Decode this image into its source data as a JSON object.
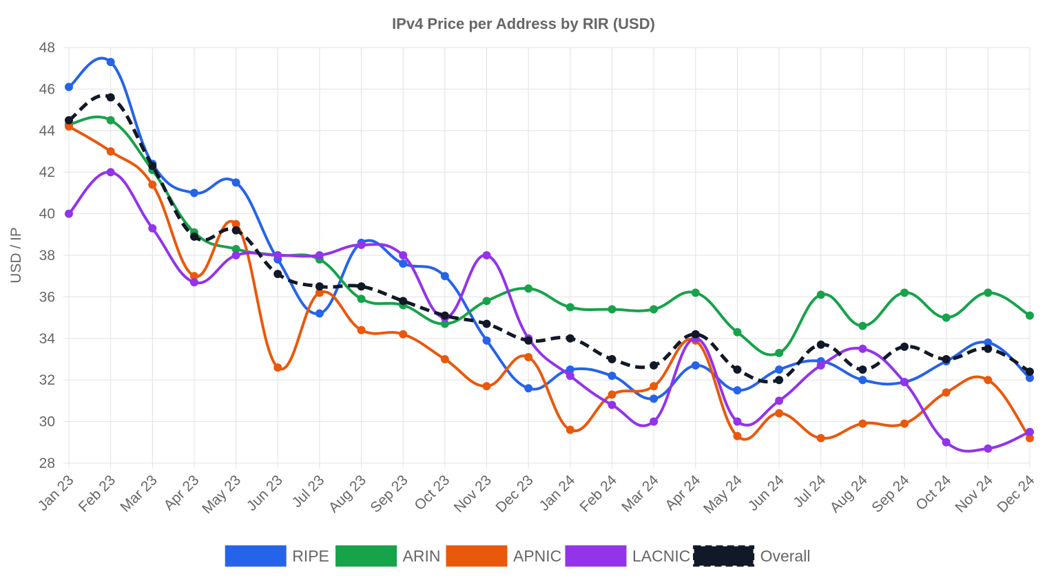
{
  "chart_data": {
    "type": "line",
    "title": "IPv4 Price per Address by RIR (USD)",
    "xlabel": "",
    "ylabel": "USD / IP",
    "ylim": [
      28,
      48
    ],
    "yticks": [
      28,
      30,
      32,
      34,
      36,
      38,
      40,
      42,
      44,
      46,
      48
    ],
    "grid": true,
    "legend_position": "bottom",
    "categories": [
      "Jan 23",
      "Feb 23",
      "Mar 23",
      "Apr 23",
      "May 23",
      "Jun 23",
      "Jul 23",
      "Aug 23",
      "Sep 23",
      "Oct 23",
      "Nov 23",
      "Dec 23",
      "Jan 24",
      "Feb 24",
      "Mar 24",
      "Apr 24",
      "May 24",
      "Jun 24",
      "Jul 24",
      "Aug 24",
      "Sep 24",
      "Oct 24",
      "Nov 24",
      "Dec 24"
    ],
    "series": [
      {
        "name": "RIPE",
        "color": "#2563eb",
        "dashed": false,
        "values": [
          46.1,
          47.3,
          42.4,
          41.0,
          41.5,
          37.8,
          35.2,
          38.6,
          37.6,
          37.0,
          33.9,
          31.6,
          32.5,
          32.2,
          31.1,
          32.7,
          31.5,
          32.5,
          32.9,
          32.0,
          31.9,
          32.9,
          33.8,
          32.1
        ]
      },
      {
        "name": "ARIN",
        "color": "#16a34a",
        "dashed": false,
        "values": [
          44.3,
          44.5,
          42.1,
          39.1,
          38.3,
          38.0,
          37.8,
          35.9,
          35.6,
          34.7,
          35.8,
          36.4,
          35.5,
          35.4,
          35.4,
          36.2,
          34.3,
          33.3,
          36.1,
          34.6,
          36.2,
          35.0,
          36.2,
          35.1
        ]
      },
      {
        "name": "APNIC",
        "color": "#ea580c",
        "dashed": false,
        "values": [
          44.2,
          43.0,
          41.4,
          37.0,
          39.5,
          32.6,
          36.2,
          34.4,
          34.2,
          33.0,
          31.7,
          33.1,
          29.6,
          31.3,
          31.7,
          33.9,
          29.3,
          30.4,
          29.2,
          29.9,
          29.9,
          31.4,
          32.0,
          29.2
        ]
      },
      {
        "name": "LACNIC",
        "color": "#9333ea",
        "dashed": false,
        "values": [
          40.0,
          42.0,
          39.3,
          36.7,
          38.0,
          38.0,
          38.0,
          38.5,
          38.0,
          35.0,
          38.0,
          34.0,
          32.2,
          30.8,
          30.0,
          34.0,
          30.0,
          31.0,
          32.7,
          33.5,
          31.9,
          29.0,
          28.7,
          29.5
        ]
      },
      {
        "name": "Overall",
        "color": "#111827",
        "dashed": true,
        "values": [
          44.5,
          45.6,
          42.3,
          38.9,
          39.2,
          37.1,
          36.5,
          36.5,
          35.8,
          35.1,
          34.7,
          33.9,
          34.0,
          33.0,
          32.7,
          34.2,
          32.5,
          32.0,
          33.7,
          32.5,
          33.6,
          33.0,
          33.5,
          32.4
        ]
      }
    ]
  }
}
